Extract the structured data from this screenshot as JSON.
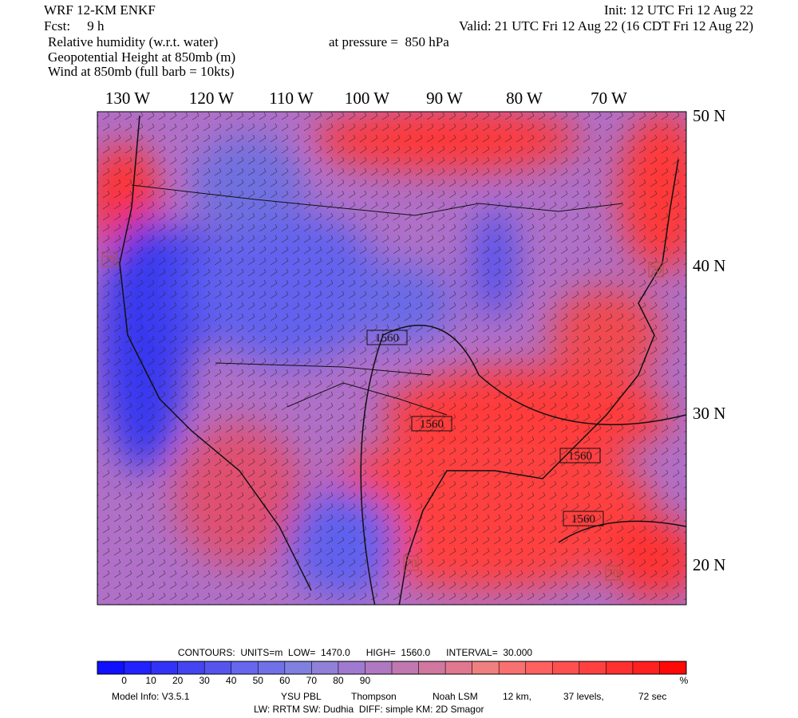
{
  "header": {
    "model": "WRF 12-KM ENKF",
    "forecast": "Fcst:     9 h",
    "fields": [
      "Relative humidity (w.r.t. water)",
      "Geopotential Height at 850mb (m)",
      "Wind at 850mb (full barb = 10kts)"
    ],
    "init": "Init: 12 UTC Fri 12 Aug 22",
    "valid": "Valid: 21 UTC Fri 12 Aug 22 (16 CDT Fri 12 Aug 22)",
    "pressure": "at pressure =  850 hPa"
  },
  "map": {
    "longitude_labels": [
      "130 W",
      "120 W",
      "110 W",
      "100 W",
      "90 W",
      "80 W",
      "70 W"
    ],
    "latitude_labels": [
      "50 N",
      "40 N",
      "30 N",
      "20 N"
    ],
    "contour_labels": [
      "1560",
      "1560",
      "1560",
      "1560",
      "70",
      "70",
      "70",
      "70"
    ]
  },
  "colorbar": {
    "contours": "CONTOURS:  UNITS=m  LOW=  1470.0      HIGH=  1560.0      INTERVAL=  30.000",
    "ticks": [
      0,
      10,
      20,
      30,
      40,
      50,
      60,
      70,
      80,
      90
    ],
    "unit": "%",
    "colors": [
      "#1010ff",
      "#2222ff",
      "#3333f8",
      "#4444f0",
      "#5555ee",
      "#6666ee",
      "#7070e8",
      "#8080e0",
      "#9080d8",
      "#a07ad0",
      "#b078c0",
      "#c078b0",
      "#d078a0",
      "#e07890",
      "#f08080",
      "#f87070",
      "#ff6060",
      "#ff5050",
      "#ff4040",
      "#ff3030",
      "#ff2020",
      "#ff0808"
    ]
  },
  "footer": {
    "line1": [
      "Model Info: V3.5.1",
      "YSU PBL",
      "Thompson",
      "Noah LSM",
      "12 km,",
      "37 levels,",
      "72 sec"
    ],
    "line2": "LW: RRTM SW: Dudhia  DIFF: simple KM: 2D Smagor"
  }
}
